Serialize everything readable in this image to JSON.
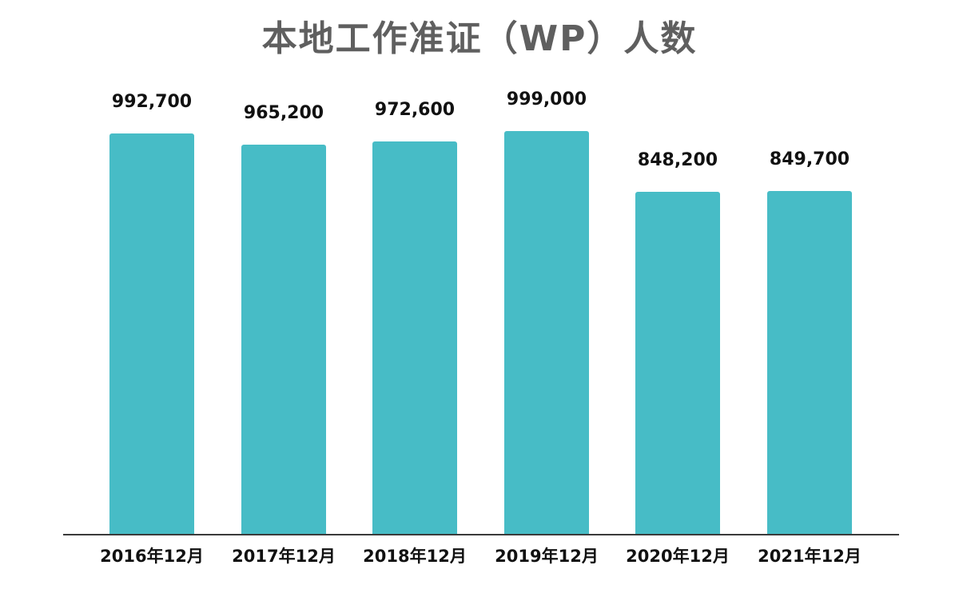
{
  "title": "本地工作准证（WP）人数",
  "bar_color": "#47bcc6",
  "axis_color": "#3a3a3a",
  "chart_data": {
    "type": "bar",
    "title": "本地工作准证（WP）人数",
    "categories": [
      "2016年12月",
      "2017年12月",
      "2018年12月",
      "2019年12月",
      "2020年12月",
      "2021年12月"
    ],
    "values": [
      992700,
      965200,
      972600,
      999000,
      848200,
      849700
    ],
    "value_labels": [
      "992,700",
      "965,200",
      "972,600",
      "999,000",
      "848,200",
      "849,700"
    ],
    "xlabel": "",
    "ylabel": "",
    "ylim": [
      0,
      1000000
    ],
    "grid": false,
    "legend": null
  }
}
